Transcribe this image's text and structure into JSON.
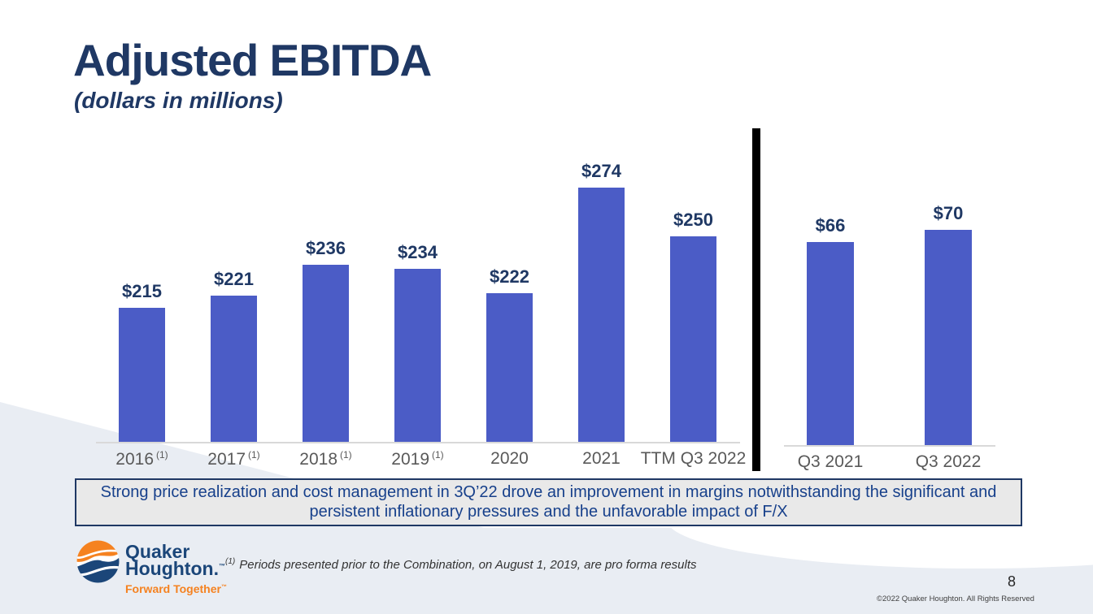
{
  "slide": {
    "title": "Adjusted EBITDA",
    "subtitle": "(dollars in millions)"
  },
  "callout": {
    "text": "Strong price realization and cost management in 3Q’22 drove an improvement in margins notwithstanding the significant and persistent inflationary pressures and the unfavorable impact of F/X"
  },
  "footnote": {
    "marker": "(1)",
    "text": "Periods presented prior to the Combination, on August 1, 2019, are pro forma results"
  },
  "footer": {
    "page_number": "8",
    "copyright": "©2022 Quaker Houghton. All Rights Reserved"
  },
  "logo": {
    "name_line1": "Quaker",
    "name_line2": "Houghton.",
    "trademark": "™",
    "tagline": "Forward Together",
    "tagline_mark": "™"
  },
  "colors": {
    "navy": "#1f3864",
    "bar_blue": "#4b5cc6",
    "callout_text_blue": "#17408b",
    "label_gray": "#595959",
    "footer_gray": "#e9edf3",
    "logo_orange": "#f58220",
    "logo_navy": "#1b4679"
  },
  "chart_data": {
    "type": "bar",
    "title": "Adjusted EBITDA",
    "units": "dollars in millions",
    "value_axis_visible": false,
    "gridlines": false,
    "bar_color": "#4b5cc6",
    "separator": "vertical black bar between annual and quarterly groups",
    "groups": [
      {
        "name": "annual",
        "bars": [
          {
            "category": "2016",
            "footnote": "(1)",
            "value": 215,
            "display": "$215"
          },
          {
            "category": "2017",
            "footnote": "(1)",
            "value": 221,
            "display": "$221"
          },
          {
            "category": "2018",
            "footnote": "(1)",
            "value": 236,
            "display": "$236"
          },
          {
            "category": "2019",
            "footnote": "(1)",
            "value": 234,
            "display": "$234"
          },
          {
            "category": "2020",
            "footnote": "",
            "value": 222,
            "display": "$222"
          },
          {
            "category": "2021",
            "footnote": "",
            "value": 274,
            "display": "$274"
          },
          {
            "category": "TTM Q3 2022",
            "footnote": "",
            "value": 250,
            "display": "$250"
          }
        ]
      },
      {
        "name": "quarterly",
        "bars": [
          {
            "category": "Q3 2021",
            "footnote": "",
            "value": 66,
            "display": "$66"
          },
          {
            "category": "Q3 2022",
            "footnote": "",
            "value": 70,
            "display": "$70"
          }
        ]
      }
    ]
  }
}
